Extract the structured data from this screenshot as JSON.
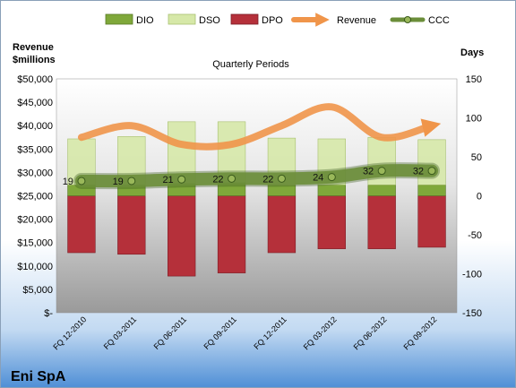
{
  "chart_data": {
    "type": "bar",
    "title": "Quarterly Periods",
    "company": "Eni SpA",
    "ylabel_left": [
      "Revenue",
      "$millions"
    ],
    "ylabel_right": "Days",
    "categories": [
      "FQ 12-2010",
      "FQ 03-2011",
      "FQ 06-2011",
      "FQ 09-2011",
      "FQ 12-2011",
      "FQ 03-2012",
      "FQ 06-2012",
      "FQ 09-2012"
    ],
    "ylim_left": [
      0,
      50000
    ],
    "ylim_right": [
      -150,
      150
    ],
    "left_ticks": [
      0,
      5000,
      10000,
      15000,
      20000,
      25000,
      30000,
      35000,
      40000,
      45000,
      50000
    ],
    "left_tick_labels": [
      "$-",
      "$5,000",
      "$10,000",
      "$15,000",
      "$20,000",
      "$25,000",
      "$30,000",
      "$35,000",
      "$40,000",
      "$45,000",
      "$50,000"
    ],
    "right_ticks": [
      -150,
      -100,
      -50,
      0,
      50,
      100,
      150
    ],
    "legend_position": "top",
    "series": [
      {
        "name": "DIO",
        "axis": "right",
        "kind": "bar",
        "color": "#7fa83a",
        "values": [
          14,
          14,
          16,
          17,
          14,
          14,
          14,
          14
        ]
      },
      {
        "name": "DSO",
        "axis": "right",
        "kind": "bar",
        "color": "#d6e8a8",
        "values": [
          59,
          62,
          79,
          78,
          60,
          59,
          61,
          58
        ]
      },
      {
        "name": "DPO",
        "axis": "right",
        "kind": "bar",
        "color": "#b5303a",
        "values": [
          -73,
          -75,
          -103,
          -99,
          -73,
          -68,
          -68,
          -66
        ]
      },
      {
        "name": "Revenue",
        "axis": "left",
        "kind": "line",
        "color": "#f0954a",
        "values": [
          37500,
          40000,
          36000,
          36000,
          40000,
          44000,
          37500,
          40000
        ]
      },
      {
        "name": "CCC",
        "axis": "right",
        "kind": "line",
        "color": "#6b8e3a",
        "values": [
          19,
          19,
          21,
          22,
          22,
          24,
          32,
          32
        ]
      }
    ],
    "data_labels": [
      "19",
      "19",
      "21",
      "22",
      "22",
      "24",
      "32",
      "32"
    ]
  }
}
